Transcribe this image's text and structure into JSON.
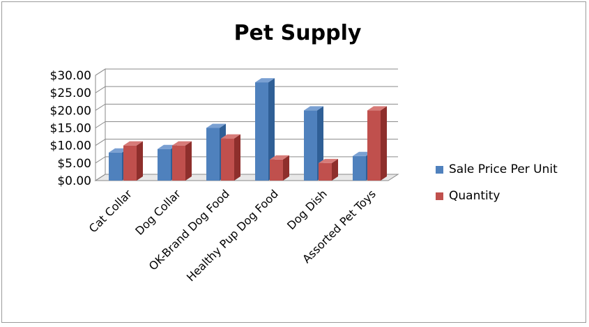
{
  "chart_data": {
    "type": "bar",
    "title": "Pet Supply",
    "xlabel": "",
    "ylabel": "",
    "categories": [
      "Cat Collar",
      "Dog Collar",
      "OK-Brand Dog Food",
      "Healthy Pup Dog Food",
      "Dog Dish",
      "Assorted Pet Toys"
    ],
    "series": [
      {
        "name": "Sale Price Per Unit",
        "values": [
          8,
          9,
          15,
          28,
          20,
          7
        ]
      },
      {
        "name": "Quantity",
        "values": [
          10,
          10,
          12,
          6,
          5,
          20
        ]
      }
    ],
    "ylim": [
      0,
      30
    ],
    "y_ticks": [
      "$0.00",
      "$5.00",
      "$10.00",
      "$15.00",
      "$20.00",
      "$25.00",
      "$30.00"
    ],
    "grid": true,
    "legend_position": "right",
    "colors": {
      "series": [
        "#4f81bd",
        "#c0504d"
      ],
      "series_side": [
        "#2f5f96",
        "#8e2f2c"
      ],
      "series_top": [
        "#7aa0d2",
        "#d77b78"
      ]
    }
  }
}
